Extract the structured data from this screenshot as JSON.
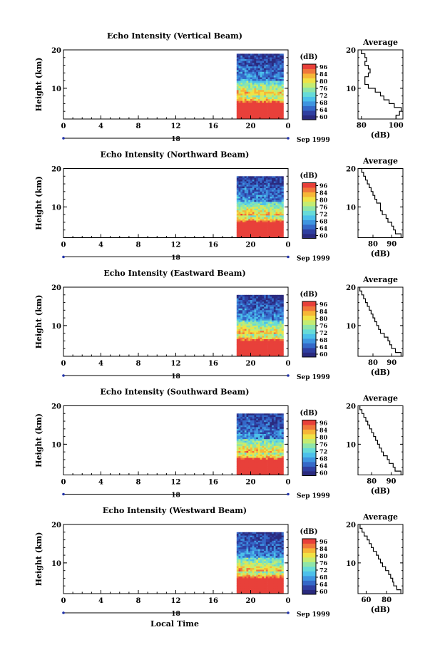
{
  "figure": {
    "bottom_label": "Local Time",
    "colors": {
      "scale": [
        "#2a2a7e",
        "#2f3fa0",
        "#3569c8",
        "#3f95e0",
        "#4cc0ea",
        "#66dbd8",
        "#8fe5a8",
        "#c4ec72",
        "#f0e245",
        "#f6b637",
        "#f0773b",
        "#e8403a"
      ],
      "line": "#000000"
    }
  },
  "chart_data": [
    {
      "type": "heatmap",
      "title": "Echo Intensity (Vertical Beam)",
      "ylabel": "Height (km)",
      "ylim": [
        2,
        20
      ],
      "yticks": [
        "10",
        "20"
      ],
      "xticks": [
        "0",
        "4",
        "8",
        "12",
        "16",
        "20",
        "0"
      ],
      "xlim": [
        0,
        24
      ],
      "date_label": "18",
      "date_suffix": "Sep 1999",
      "data_start_hour": 18.5,
      "data_end_hour": 23.5,
      "data_top_km": 19,
      "colorbar": {
        "label": "(dB)",
        "ticks": [
          "96",
          "84",
          "80",
          "76",
          "72",
          "68",
          "64",
          "60"
        ]
      },
      "profile": {
        "title": "Average",
        "xlabel": "(dB)",
        "xticks": [
          "80",
          "100"
        ],
        "xlim": [
          78,
          104
        ],
        "ylim": [
          2,
          20
        ],
        "yticks": [
          "10",
          "20"
        ],
        "heights": [
          2.5,
          3.5,
          4.5,
          5.5,
          6.5,
          7.5,
          8.5,
          9.5,
          10.5,
          11.5,
          12.5,
          13.5,
          14.5,
          15.5,
          16.5,
          17.5,
          18.5,
          19.5
        ],
        "values": [
          100,
          102,
          103,
          99,
          96,
          93,
          91,
          88,
          84,
          82,
          82,
          84,
          85,
          84,
          82,
          83,
          82,
          80
        ]
      }
    },
    {
      "type": "heatmap",
      "title": "Echo Intensity (Northward Beam)",
      "ylabel": "Height (km)",
      "ylim": [
        2,
        20
      ],
      "yticks": [
        "10",
        "20"
      ],
      "xticks": [
        "0",
        "4",
        "8",
        "12",
        "16",
        "20",
        "0"
      ],
      "xlim": [
        0,
        24
      ],
      "date_label": "18",
      "date_suffix": "Sep 1999",
      "data_start_hour": 18.5,
      "data_end_hour": 23.5,
      "data_top_km": 18,
      "colorbar": {
        "label": "(dB)",
        "ticks": [
          "96",
          "84",
          "80",
          "76",
          "72",
          "68",
          "64",
          "60"
        ]
      },
      "profile": {
        "title": "Average",
        "xlabel": "(dB)",
        "xticks": [
          "80",
          "90"
        ],
        "xlim": [
          72,
          96
        ],
        "ylim": [
          2,
          20
        ],
        "yticks": [
          "10",
          "20"
        ],
        "heights": [
          2.5,
          3.5,
          4.5,
          5.5,
          6.5,
          7.5,
          8.5,
          9.5,
          10.5,
          11.5,
          12.5,
          13.5,
          14.5,
          15.5,
          16.5,
          17.5,
          18.5,
          19.5
        ],
        "values": [
          95,
          92,
          91,
          90,
          88,
          87,
          85,
          84,
          84,
          82,
          81,
          80,
          79,
          78,
          77,
          76,
          75,
          74
        ]
      }
    },
    {
      "type": "heatmap",
      "title": "Echo Intensity (Eastward Beam)",
      "ylabel": "Height (km)",
      "ylim": [
        2,
        20
      ],
      "yticks": [
        "10",
        "20"
      ],
      "xticks": [
        "0",
        "4",
        "8",
        "12",
        "16",
        "20",
        "0"
      ],
      "xlim": [
        0,
        24
      ],
      "date_label": "18",
      "date_suffix": "Sep 1999",
      "data_start_hour": 18.5,
      "data_end_hour": 23.5,
      "data_top_km": 18,
      "colorbar": {
        "label": "(dB)",
        "ticks": [
          "96",
          "84",
          "80",
          "76",
          "72",
          "68",
          "64",
          "60"
        ]
      },
      "profile": {
        "title": "Average",
        "xlabel": "(dB)",
        "xticks": [
          "80",
          "90"
        ],
        "xlim": [
          72,
          96
        ],
        "ylim": [
          2,
          20
        ],
        "yticks": [
          "10",
          "20"
        ],
        "heights": [
          2.5,
          3.5,
          4.5,
          5.5,
          6.5,
          7.5,
          8.5,
          9.5,
          10.5,
          11.5,
          12.5,
          13.5,
          14.5,
          15.5,
          16.5,
          17.5,
          18.5,
          19.5
        ],
        "values": [
          95,
          92,
          90,
          89,
          88,
          86,
          84,
          83,
          82,
          81,
          80,
          79,
          78,
          77,
          76,
          75,
          74,
          73
        ]
      }
    },
    {
      "type": "heatmap",
      "title": "Echo Intensity (Southward Beam)",
      "ylabel": "Height (km)",
      "ylim": [
        2,
        20
      ],
      "yticks": [
        "10",
        "20"
      ],
      "xticks": [
        "0",
        "4",
        "8",
        "12",
        "16",
        "20",
        "0"
      ],
      "xlim": [
        0,
        24
      ],
      "date_label": "18",
      "date_suffix": "Sep 1999",
      "data_start_hour": 18.5,
      "data_end_hour": 23.5,
      "data_top_km": 18,
      "colorbar": {
        "label": "(dB)",
        "ticks": [
          "96",
          "84",
          "80",
          "76",
          "72",
          "68",
          "64",
          "60"
        ]
      },
      "profile": {
        "title": "Average",
        "xlabel": "(dB)",
        "xticks": [
          "80",
          "90"
        ],
        "xlim": [
          73,
          96
        ],
        "ylim": [
          2,
          20
        ],
        "yticks": [
          "10",
          "20"
        ],
        "heights": [
          2.5,
          3.5,
          4.5,
          5.5,
          6.5,
          7.5,
          8.5,
          9.5,
          10.5,
          11.5,
          12.5,
          13.5,
          14.5,
          15.5,
          16.5,
          17.5,
          18.5,
          19.5
        ],
        "values": [
          95,
          92,
          91,
          89,
          88,
          86,
          85,
          84,
          83,
          82,
          81,
          80,
          79,
          78,
          77,
          76,
          75,
          74
        ]
      }
    },
    {
      "type": "heatmap",
      "title": "Echo Intensity (Westward Beam)",
      "ylabel": "Height (km)",
      "ylim": [
        2,
        20
      ],
      "yticks": [
        "10",
        "20"
      ],
      "xticks": [
        "0",
        "4",
        "8",
        "12",
        "16",
        "20",
        "0"
      ],
      "xlim": [
        0,
        24
      ],
      "date_label": "18",
      "date_suffix": "Sep 1999",
      "data_start_hour": 18.5,
      "data_end_hour": 23.5,
      "data_top_km": 18,
      "colorbar": {
        "label": "(dB)",
        "ticks": [
          "96",
          "84",
          "80",
          "76",
          "72",
          "68",
          "64",
          "60"
        ]
      },
      "profile": {
        "title": "Average",
        "xlabel": "(dB)",
        "xticks": [
          "60",
          "80"
        ],
        "xlim": [
          52,
          96
        ],
        "ylim": [
          2,
          20
        ],
        "yticks": [
          "10",
          "20"
        ],
        "heights": [
          2.5,
          3.5,
          4.5,
          5.5,
          6.5,
          7.5,
          8.5,
          9.5,
          10.5,
          11.5,
          12.5,
          13.5,
          14.5,
          15.5,
          16.5,
          17.5,
          18.5,
          19.5
        ],
        "values": [
          94,
          90,
          87,
          86,
          84,
          82,
          79,
          76,
          74,
          72,
          70,
          67,
          65,
          63,
          61,
          58,
          56,
          54
        ]
      }
    }
  ]
}
